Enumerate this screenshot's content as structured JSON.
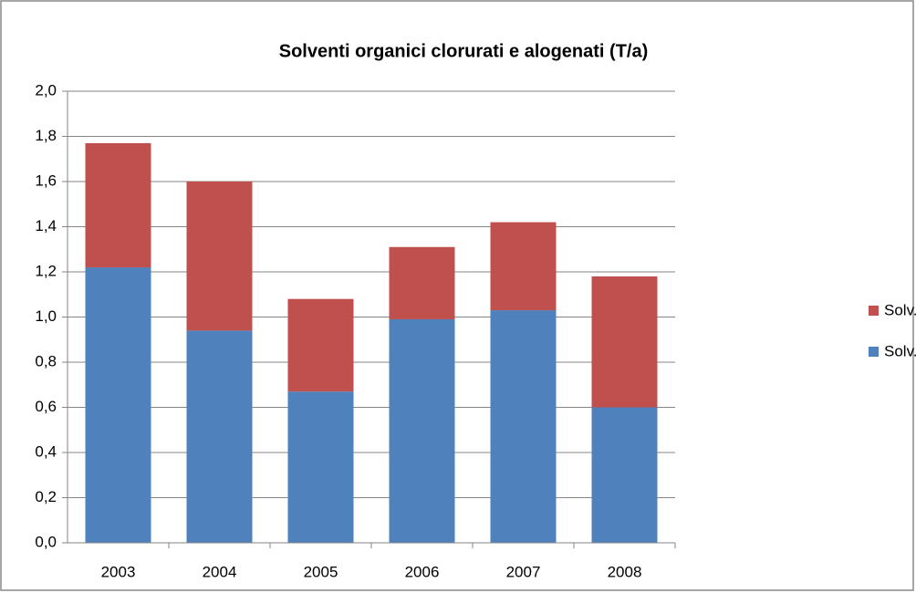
{
  "chart_data": {
    "type": "stacked_bar",
    "title": "Solventi organici clorurati e alogenati (T/a)",
    "categories": [
      "2003",
      "2004",
      "2005",
      "2006",
      "2007",
      "2008"
    ],
    "series": [
      {
        "name": "Solv. org. alogenati",
        "color": "#4f81bd",
        "values": [
          1.22,
          0.94,
          0.67,
          0.99,
          1.03,
          0.6
        ]
      },
      {
        "name": "Solv. org. clorurati",
        "color": "#c0504d",
        "values": [
          0.55,
          0.66,
          0.41,
          0.32,
          0.39,
          0.58
        ]
      }
    ],
    "ylim": [
      0,
      2
    ],
    "yticks": [
      {
        "value": 0,
        "label": "0,0"
      },
      {
        "value": 0.2,
        "label": "0,2"
      },
      {
        "value": 0.4,
        "label": "0,4"
      },
      {
        "value": 0.6,
        "label": "0,6"
      },
      {
        "value": 0.8,
        "label": "0,8"
      },
      {
        "value": 1.0,
        "label": "1,0"
      },
      {
        "value": 1.2,
        "label": "1,2"
      },
      {
        "value": 1.4,
        "label": "1,4"
      },
      {
        "value": 1.6,
        "label": "1,6"
      },
      {
        "value": 1.8,
        "label": "1,8"
      },
      {
        "value": 2.0,
        "label": "2,0"
      }
    ],
    "grid": true,
    "legend": "right"
  }
}
